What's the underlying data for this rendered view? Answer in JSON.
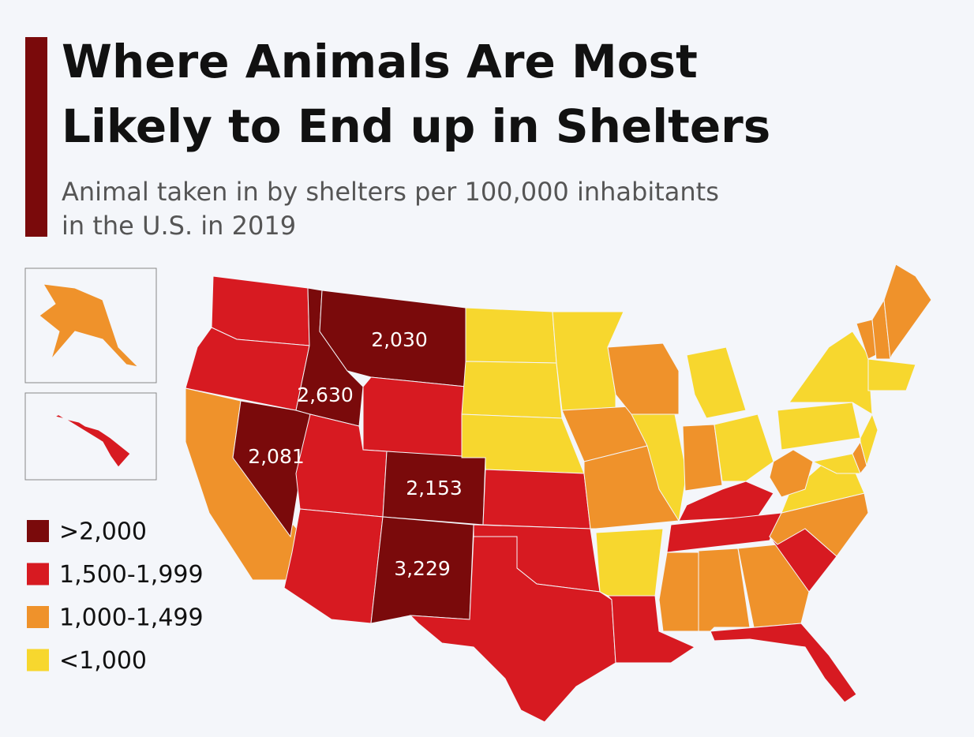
{
  "header": {
    "title": [
      "Where Animals Are Most",
      "Likely to End up in Shelters"
    ],
    "subtitle": [
      "Animal taken in by shelters per 100,000 inhabitants",
      "in the U.S. in 2019"
    ]
  },
  "legend": [
    {
      "label": ">2,000",
      "color": "#7a0a0b"
    },
    {
      "label": "1,500-1,999",
      "color": "#d71a21"
    },
    {
      "label": "1,000-1,499",
      "color": "#ef922b"
    },
    {
      "label": "<1,000",
      "color": "#f7d72e"
    }
  ],
  "map": {
    "states": [
      1,
      1,
      2,
      0,
      0,
      0,
      1,
      1,
      1,
      0,
      0,
      3,
      3,
      3,
      1,
      1,
      1,
      3,
      2,
      2,
      3,
      1,
      2,
      3,
      3,
      2,
      3,
      1,
      1,
      2,
      2,
      2,
      1,
      1,
      2,
      3,
      2,
      3,
      3,
      3,
      2,
      3,
      2,
      2,
      2,
      3,
      2,
      1
    ],
    "labels": [
      "2,030",
      "2,630",
      "2,081",
      "2,153",
      "3,229"
    ]
  }
}
